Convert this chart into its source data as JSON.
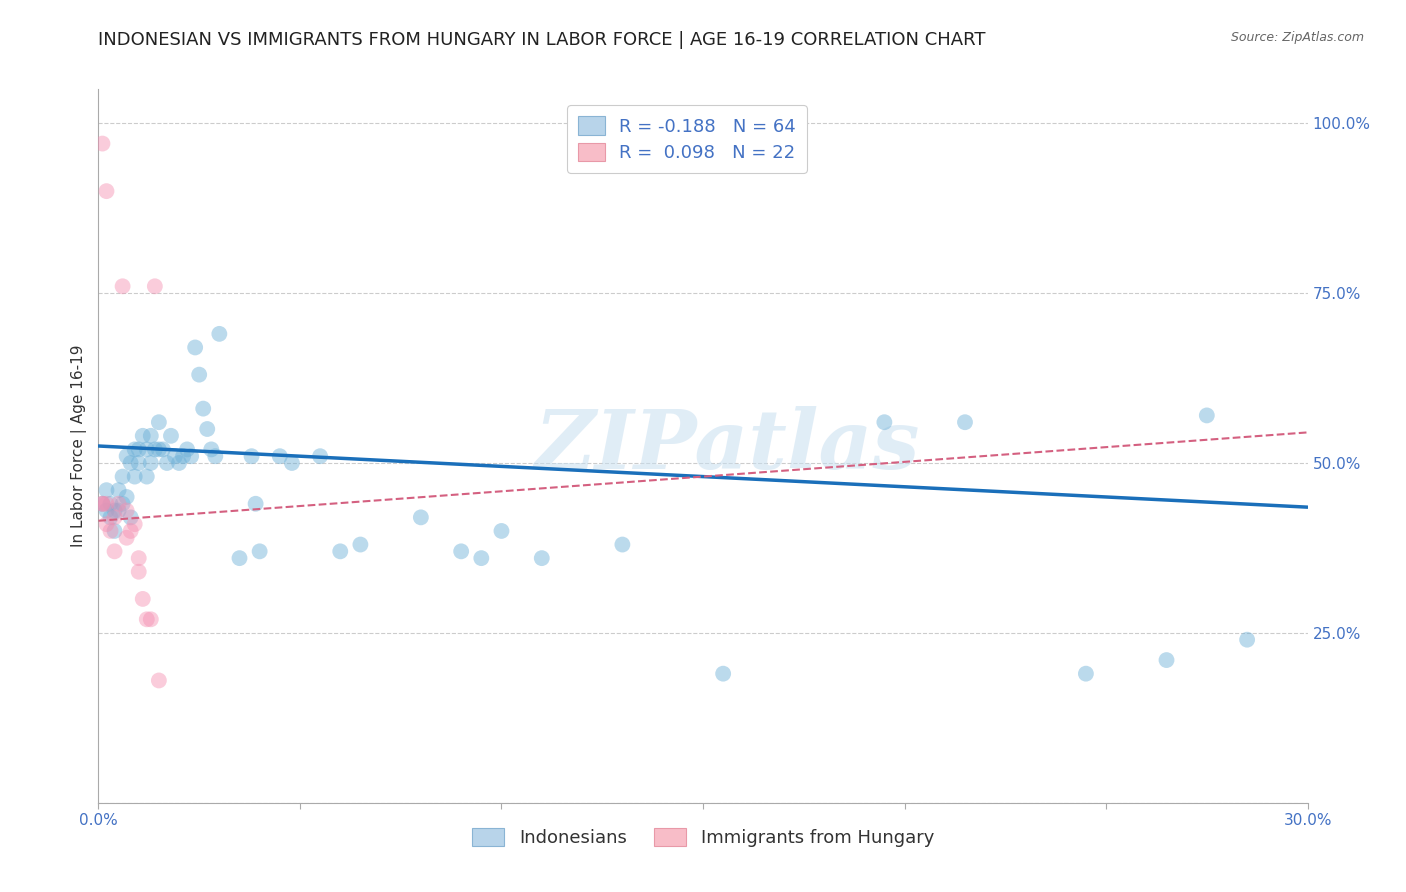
{
  "title": "INDONESIAN VS IMMIGRANTS FROM HUNGARY IN LABOR FORCE | AGE 16-19 CORRELATION CHART",
  "source": "Source: ZipAtlas.com",
  "ylabel": "In Labor Force | Age 16-19",
  "xmin": 0.0,
  "xmax": 0.3,
  "ymin": 0.0,
  "ymax": 1.05,
  "legend_entries": [
    {
      "label": "R = -0.188   N = 64",
      "color": "#a8c4e0"
    },
    {
      "label": "R =  0.098   N = 22",
      "color": "#f4a0b0"
    }
  ],
  "indonesian_scatter": [
    [
      0.001,
      0.44
    ],
    [
      0.002,
      0.46
    ],
    [
      0.002,
      0.43
    ],
    [
      0.003,
      0.42
    ],
    [
      0.003,
      0.44
    ],
    [
      0.004,
      0.4
    ],
    [
      0.004,
      0.43
    ],
    [
      0.005,
      0.43
    ],
    [
      0.005,
      0.46
    ],
    [
      0.006,
      0.48
    ],
    [
      0.006,
      0.44
    ],
    [
      0.007,
      0.51
    ],
    [
      0.007,
      0.45
    ],
    [
      0.008,
      0.5
    ],
    [
      0.008,
      0.42
    ],
    [
      0.009,
      0.52
    ],
    [
      0.009,
      0.48
    ],
    [
      0.01,
      0.52
    ],
    [
      0.01,
      0.5
    ],
    [
      0.011,
      0.54
    ],
    [
      0.012,
      0.48
    ],
    [
      0.012,
      0.52
    ],
    [
      0.013,
      0.54
    ],
    [
      0.013,
      0.5
    ],
    [
      0.014,
      0.52
    ],
    [
      0.015,
      0.52
    ],
    [
      0.015,
      0.56
    ],
    [
      0.016,
      0.52
    ],
    [
      0.017,
      0.5
    ],
    [
      0.018,
      0.54
    ],
    [
      0.019,
      0.51
    ],
    [
      0.02,
      0.5
    ],
    [
      0.021,
      0.51
    ],
    [
      0.022,
      0.52
    ],
    [
      0.023,
      0.51
    ],
    [
      0.024,
      0.67
    ],
    [
      0.025,
      0.63
    ],
    [
      0.026,
      0.58
    ],
    [
      0.027,
      0.55
    ],
    [
      0.028,
      0.52
    ],
    [
      0.029,
      0.51
    ],
    [
      0.03,
      0.69
    ],
    [
      0.035,
      0.36
    ],
    [
      0.038,
      0.51
    ],
    [
      0.039,
      0.44
    ],
    [
      0.04,
      0.37
    ],
    [
      0.045,
      0.51
    ],
    [
      0.048,
      0.5
    ],
    [
      0.055,
      0.51
    ],
    [
      0.06,
      0.37
    ],
    [
      0.065,
      0.38
    ],
    [
      0.08,
      0.42
    ],
    [
      0.09,
      0.37
    ],
    [
      0.095,
      0.36
    ],
    [
      0.1,
      0.4
    ],
    [
      0.11,
      0.36
    ],
    [
      0.13,
      0.38
    ],
    [
      0.155,
      0.19
    ],
    [
      0.195,
      0.56
    ],
    [
      0.215,
      0.56
    ],
    [
      0.245,
      0.19
    ],
    [
      0.265,
      0.21
    ],
    [
      0.275,
      0.57
    ],
    [
      0.285,
      0.24
    ]
  ],
  "hungary_scatter": [
    [
      0.001,
      0.44
    ],
    [
      0.001,
      0.44
    ],
    [
      0.002,
      0.44
    ],
    [
      0.002,
      0.41
    ],
    [
      0.003,
      0.4
    ],
    [
      0.004,
      0.42
    ],
    [
      0.004,
      0.37
    ],
    [
      0.005,
      0.44
    ],
    [
      0.006,
      0.76
    ],
    [
      0.007,
      0.43
    ],
    [
      0.007,
      0.39
    ],
    [
      0.008,
      0.4
    ],
    [
      0.009,
      0.41
    ],
    [
      0.01,
      0.36
    ],
    [
      0.01,
      0.34
    ],
    [
      0.011,
      0.3
    ],
    [
      0.012,
      0.27
    ],
    [
      0.013,
      0.27
    ],
    [
      0.014,
      0.76
    ],
    [
      0.015,
      0.18
    ],
    [
      0.001,
      0.97
    ],
    [
      0.002,
      0.9
    ]
  ],
  "blue_line": {
    "x0": 0.0,
    "y0": 0.525,
    "x1": 0.3,
    "y1": 0.435
  },
  "pink_line": {
    "x0": 0.0,
    "y0": 0.415,
    "x1": 0.3,
    "y1": 0.545
  },
  "scatter_size": 130,
  "scatter_alpha": 0.45,
  "blue_color": "#6aaed6",
  "pink_color": "#f48fb1",
  "blue_line_color": "#1a6fba",
  "pink_line_color": "#d46080",
  "watermark": "ZIPatlas",
  "background_color": "#ffffff",
  "grid_color": "#cccccc",
  "title_fontsize": 13,
  "axis_label_fontsize": 11,
  "tick_fontsize": 11,
  "legend_fontsize": 13
}
